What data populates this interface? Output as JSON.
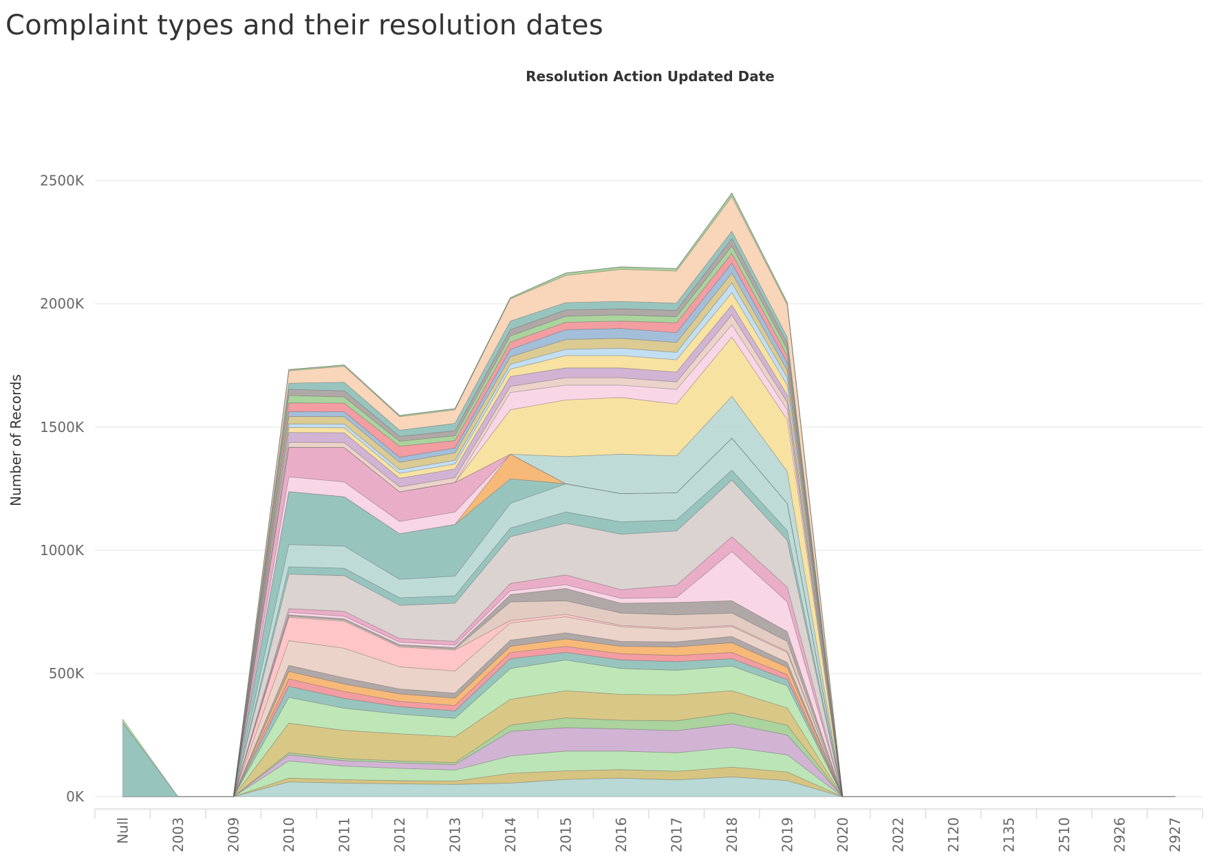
{
  "chart_data": {
    "type": "area",
    "stacked": true,
    "title": "Complaint types and their resolution dates",
    "xlabel": "Resolution Action Updated Date",
    "ylabel": "Number of Records",
    "categories": [
      "Null",
      "2003",
      "2009",
      "2010",
      "2011",
      "2012",
      "2013",
      "2014",
      "2015",
      "2016",
      "2017",
      "2018",
      "2019",
      "2020",
      "2022",
      "2120",
      "2135",
      "2510",
      "2926",
      "2927"
    ],
    "y_ticks": [
      {
        "value": 0,
        "label": "0K"
      },
      {
        "value": 500000,
        "label": "500K"
      },
      {
        "value": 1000000,
        "label": "1000K"
      },
      {
        "value": 1500000,
        "label": "1500K"
      },
      {
        "value": 2000000,
        "label": "2000K"
      },
      {
        "value": 2500000,
        "label": "2500K"
      }
    ],
    "ylim": [
      -50000,
      2870000
    ],
    "grid": true,
    "legend": "none",
    "palette": [
      "#8fbfb9",
      "#d3bf76",
      "#b5e3b0",
      "#e08a9b",
      "#f6b36d",
      "#e9cfc4",
      "#ffc0c2",
      "#d7cfcc",
      "#e8a6c2",
      "#a9a19e",
      "#f6e09a",
      "#b9d8d4",
      "#f8d2e3",
      "#f9d2b3",
      "#9bb9d6",
      "#bddbf0",
      "#cdaed0",
      "#f1959a",
      "#d8c78a",
      "#a3cf95"
    ],
    "series": [
      {
        "name": "",
        "color": "#b2d6d1",
        "values": [
          0,
          0,
          0,
          60000,
          55000,
          52000,
          50000,
          55000,
          70000,
          75000,
          68000,
          80000,
          65000,
          0,
          0,
          0,
          0,
          0,
          0,
          0
        ]
      },
      {
        "name": "",
        "color": "#d3bf76",
        "values": [
          0,
          0,
          0,
          15000,
          14000,
          13000,
          13000,
          40000,
          35000,
          35000,
          35000,
          40000,
          35000,
          0,
          0,
          0,
          0,
          0,
          0,
          0
        ]
      },
      {
        "name": "",
        "color": "#b5e3b0",
        "values": [
          0,
          0,
          0,
          70000,
          55000,
          50000,
          45000,
          70000,
          80000,
          75000,
          75000,
          80000,
          70000,
          0,
          0,
          0,
          0,
          0,
          0,
          0
        ]
      },
      {
        "name": "",
        "color": "#cdaed0",
        "values": [
          0,
          0,
          0,
          25000,
          22000,
          22000,
          22000,
          100000,
          95000,
          90000,
          90000,
          95000,
          80000,
          0,
          0,
          0,
          0,
          0,
          0,
          0
        ]
      },
      {
        "name": "",
        "color": "#a3cf95",
        "values": [
          0,
          0,
          0,
          8000,
          8000,
          8000,
          8000,
          25000,
          40000,
          35000,
          40000,
          45000,
          40000,
          0,
          0,
          0,
          0,
          0,
          0,
          0
        ]
      },
      {
        "name": "",
        "color": "#d6c27c",
        "values": [
          0,
          0,
          0,
          120000,
          115000,
          110000,
          105000,
          105000,
          110000,
          105000,
          105000,
          90000,
          70000,
          0,
          0,
          0,
          0,
          0,
          0,
          0
        ]
      },
      {
        "name": "",
        "color": "#b8e4b0",
        "values": [
          0,
          0,
          0,
          105000,
          90000,
          80000,
          75000,
          125000,
          125000,
          105000,
          100000,
          100000,
          90000,
          0,
          0,
          0,
          0,
          0,
          0,
          0
        ]
      },
      {
        "name": "",
        "color": "#8fbfb9",
        "values": [
          0,
          0,
          0,
          45000,
          40000,
          30000,
          30000,
          40000,
          30000,
          35000,
          35000,
          30000,
          25000,
          0,
          0,
          0,
          0,
          0,
          0,
          0
        ]
      },
      {
        "name": "",
        "color": "#f1959a",
        "values": [
          0,
          0,
          0,
          30000,
          28000,
          22000,
          22000,
          25000,
          25000,
          25000,
          25000,
          25000,
          20000,
          0,
          0,
          0,
          0,
          0,
          0,
          0
        ]
      },
      {
        "name": "",
        "color": "#f6b36d",
        "values": [
          0,
          0,
          0,
          30000,
          30000,
          30000,
          30000,
          25000,
          30000,
          30000,
          35000,
          40000,
          30000,
          0,
          0,
          0,
          0,
          0,
          0,
          0
        ]
      },
      {
        "name": "",
        "color": "#a9a19e",
        "values": [
          0,
          0,
          0,
          25000,
          25000,
          20000,
          20000,
          25000,
          25000,
          20000,
          20000,
          25000,
          20000,
          0,
          0,
          0,
          0,
          0,
          0,
          0
        ]
      },
      {
        "name": "",
        "color": "#e9cfc4",
        "values": [
          0,
          0,
          0,
          100000,
          120000,
          90000,
          90000,
          70000,
          65000,
          60000,
          50000,
          40000,
          40000,
          0,
          0,
          0,
          0,
          0,
          0,
          0
        ]
      },
      {
        "name": "",
        "color": "#ffc0c2",
        "values": [
          0,
          0,
          0,
          95000,
          110000,
          80000,
          85000,
          10000,
          10000,
          5000,
          5000,
          5000,
          5000,
          0,
          0,
          0,
          0,
          0,
          0,
          0
        ]
      },
      {
        "name": "",
        "color": "#e0c8bd",
        "values": [
          0,
          0,
          0,
          5000,
          5000,
          5000,
          5000,
          75000,
          55000,
          50000,
          55000,
          50000,
          40000,
          0,
          0,
          0,
          0,
          0,
          0,
          0
        ]
      },
      {
        "name": "",
        "color": "#a9a19e",
        "values": [
          0,
          0,
          0,
          5000,
          5000,
          5000,
          5000,
          30000,
          50000,
          40000,
          50000,
          50000,
          40000,
          0,
          0,
          0,
          0,
          0,
          0,
          0
        ]
      },
      {
        "name": "",
        "color": "#f8d2e3",
        "values": [
          0,
          0,
          0,
          10000,
          10000,
          10000,
          10000,
          15000,
          15000,
          20000,
          20000,
          200000,
          120000,
          0,
          0,
          0,
          0,
          0,
          0,
          0
        ]
      },
      {
        "name": "",
        "color": "#e8a6c2",
        "values": [
          0,
          0,
          0,
          15000,
          20000,
          15000,
          15000,
          30000,
          40000,
          35000,
          50000,
          60000,
          60000,
          0,
          0,
          0,
          0,
          0,
          0,
          0
        ]
      },
      {
        "name": "",
        "color": "#d7cfcc",
        "values": [
          0,
          0,
          0,
          140000,
          145000,
          135000,
          155000,
          190000,
          210000,
          225000,
          220000,
          230000,
          190000,
          0,
          0,
          0,
          0,
          0,
          0,
          0
        ]
      },
      {
        "name": "",
        "color": "#8fbfb9",
        "values": [
          0,
          0,
          0,
          30000,
          30000,
          30000,
          30000,
          35000,
          45000,
          50000,
          45000,
          40000,
          40000,
          0,
          0,
          0,
          0,
          0,
          0,
          0
        ]
      },
      {
        "name": "",
        "color": "#b9d8d4",
        "values": [
          0,
          0,
          0,
          90000,
          90000,
          75000,
          80000,
          100000,
          115000,
          115000,
          110000,
          130000,
          110000,
          0,
          0,
          0,
          0,
          0,
          0,
          0
        ]
      },
      {
        "name": "",
        "color": "#8fbfb9",
        "values": [
          0,
          0,
          0,
          215000,
          200000,
          185000,
          210000,
          100000,
          0,
          0,
          0,
          0,
          0,
          0,
          0,
          0,
          0,
          0,
          0,
          0
        ]
      },
      {
        "name": "",
        "color": "#f6b36d",
        "values": [
          0,
          0,
          0,
          0,
          0,
          0,
          0,
          100000,
          0,
          0,
          0,
          0,
          0,
          0,
          0,
          0,
          0,
          0,
          0,
          0
        ]
      },
      {
        "name": "",
        "color": "#f8d2e3",
        "values": [
          0,
          0,
          0,
          60000,
          60000,
          50000,
          50000,
          0,
          0,
          0,
          0,
          0,
          0,
          0,
          0,
          0,
          0,
          0,
          0,
          0
        ]
      },
      {
        "name": "",
        "color": "#e8a6c2",
        "values": [
          0,
          0,
          0,
          120000,
          140000,
          120000,
          120000,
          0,
          0,
          0,
          0,
          0,
          0,
          0,
          0,
          0,
          0,
          0,
          0,
          0
        ]
      },
      {
        "name": "",
        "color": "#b9d8d4",
        "values": [
          0,
          0,
          0,
          0,
          0,
          0,
          0,
          0,
          110000,
          160000,
          150000,
          170000,
          130000,
          0,
          0,
          0,
          0,
          0,
          0,
          0
        ]
      },
      {
        "name": "",
        "color": "#f6e09a",
        "values": [
          0,
          0,
          0,
          0,
          0,
          0,
          0,
          180000,
          230000,
          230000,
          210000,
          240000,
          210000,
          0,
          0,
          0,
          0,
          0,
          0,
          0
        ]
      },
      {
        "name": "",
        "color": "#f8d2e3",
        "values": [
          0,
          0,
          0,
          0,
          0,
          0,
          0,
          70000,
          60000,
          50000,
          60000,
          50000,
          40000,
          0,
          0,
          0,
          0,
          0,
          0,
          0
        ]
      },
      {
        "name": "",
        "color": "#e9cfc4",
        "values": [
          0,
          0,
          0,
          20000,
          20000,
          20000,
          20000,
          25000,
          30000,
          30000,
          30000,
          40000,
          30000,
          0,
          0,
          0,
          0,
          0,
          0,
          0
        ]
      },
      {
        "name": "",
        "color": "#cdaed0",
        "values": [
          0,
          0,
          0,
          40000,
          40000,
          35000,
          35000,
          40000,
          40000,
          40000,
          40000,
          40000,
          30000,
          0,
          0,
          0,
          0,
          0,
          0,
          0
        ]
      },
      {
        "name": "",
        "color": "#f6e09a",
        "values": [
          0,
          0,
          0,
          20000,
          20000,
          20000,
          20000,
          30000,
          50000,
          50000,
          50000,
          50000,
          40000,
          0,
          0,
          0,
          0,
          0,
          0,
          0
        ]
      },
      {
        "name": "",
        "color": "#bddbf0",
        "values": [
          0,
          0,
          0,
          15000,
          15000,
          15000,
          15000,
          20000,
          25000,
          30000,
          30000,
          40000,
          30000,
          0,
          0,
          0,
          0,
          0,
          0,
          0
        ]
      },
      {
        "name": "",
        "color": "#d8c78a",
        "values": [
          0,
          0,
          0,
          30000,
          30000,
          30000,
          30000,
          30000,
          40000,
          40000,
          40000,
          40000,
          30000,
          0,
          0,
          0,
          0,
          0,
          0,
          0
        ]
      },
      {
        "name": "",
        "color": "#9bb9d6",
        "values": [
          0,
          0,
          0,
          20000,
          20000,
          20000,
          20000,
          30000,
          40000,
          40000,
          40000,
          40000,
          30000,
          0,
          0,
          0,
          0,
          0,
          0,
          0
        ]
      },
      {
        "name": "",
        "color": "#f1959a",
        "values": [
          0,
          0,
          0,
          35000,
          35000,
          45000,
          30000,
          30000,
          30000,
          30000,
          40000,
          40000,
          30000,
          0,
          0,
          0,
          0,
          0,
          0,
          0
        ]
      },
      {
        "name": "",
        "color": "#a3cf95",
        "values": [
          0,
          0,
          0,
          30000,
          25000,
          20000,
          20000,
          25000,
          25000,
          25000,
          25000,
          30000,
          25000,
          0,
          0,
          0,
          0,
          0,
          0,
          0
        ]
      },
      {
        "name": "",
        "color": "#a9a19e",
        "values": [
          0,
          0,
          0,
          25000,
          25000,
          20000,
          20000,
          25000,
          25000,
          25000,
          25000,
          30000,
          25000,
          0,
          0,
          0,
          0,
          0,
          0,
          0
        ]
      },
      {
        "name": "",
        "color": "#8fbfb9",
        "values": [
          0,
          0,
          0,
          25000,
          35000,
          25000,
          30000,
          35000,
          30000,
          30000,
          30000,
          30000,
          25000,
          0,
          0,
          0,
          0,
          0,
          0,
          0
        ]
      },
      {
        "name": "",
        "color": "#f9d2b3",
        "values": [
          0,
          0,
          0,
          50000,
          65000,
          55000,
          55000,
          90000,
          110000,
          130000,
          130000,
          140000,
          130000,
          0,
          0,
          0,
          0,
          0,
          0,
          0
        ]
      },
      {
        "name": "",
        "color": "#a3cf95",
        "values": [
          0,
          0,
          0,
          5000,
          5000,
          5000,
          5000,
          5000,
          10000,
          10000,
          10000,
          15000,
          10000,
          0,
          0,
          0,
          0,
          0,
          0,
          0
        ]
      },
      {
        "name": "",
        "color": "#8fbfb9",
        "values": [
          300000,
          0,
          0,
          0,
          0,
          0,
          0,
          0,
          0,
          0,
          0,
          0,
          0,
          0,
          0,
          0,
          0,
          0,
          0,
          0
        ]
      },
      {
        "name": "",
        "color": "#a3cf95",
        "values": [
          15000,
          0,
          0,
          0,
          0,
          0,
          0,
          0,
          0,
          0,
          0,
          0,
          0,
          0,
          0,
          0,
          0,
          0,
          0,
          0
        ]
      }
    ]
  }
}
